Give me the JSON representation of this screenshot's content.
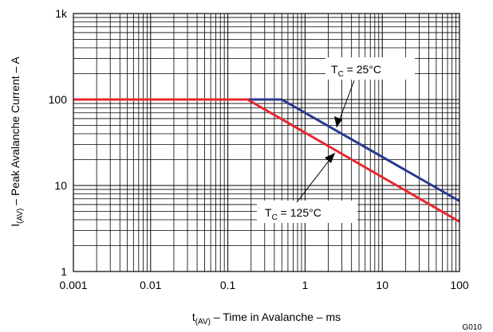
{
  "chart_data": {
    "type": "line",
    "x_scale": "log",
    "y_scale": "log",
    "xlim": [
      0.001,
      100
    ],
    "ylim": [
      1,
      1000
    ],
    "grid": true,
    "x_ticks": [
      "0.001",
      "0.01",
      "0.1",
      "1",
      "10",
      "100"
    ],
    "y_ticks": [
      "1",
      "10",
      "100",
      "1k"
    ],
    "xlabel": {
      "main": "t",
      "sub": "(AV)",
      "rest": " – Time in Avalanche – ms"
    },
    "ylabel": {
      "main": "I",
      "sub": "(AV)",
      "rest": " – Peak Avalanche Current – A"
    },
    "figure_id": "G010",
    "series": [
      {
        "name": {
          "main": "T",
          "sub": "C",
          "rest": " = 25°C"
        },
        "color": "#2b3990",
        "points": [
          [
            0.001,
            100
          ],
          [
            0.5,
            100
          ],
          [
            100,
            6.6
          ]
        ]
      },
      {
        "name": {
          "main": "T",
          "sub": "C",
          "rest": " = 125°C"
        },
        "color": "#e8262d",
        "points": [
          [
            0.001,
            100
          ],
          [
            0.18,
            100
          ],
          [
            100,
            3.8
          ]
        ]
      }
    ]
  }
}
